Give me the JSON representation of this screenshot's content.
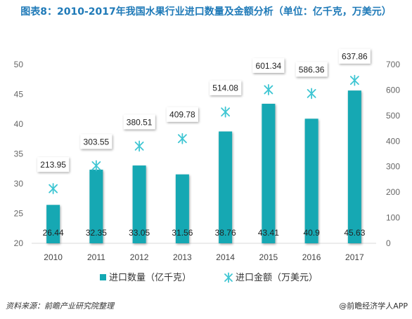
{
  "title": "图表8：2010-2017年我国水果行业进口数量及金额分析（单位：亿千克，万美元）",
  "source": "资料来源：前瞻产业研究院整理",
  "brand": "@前瞻经济学人APP",
  "colors": {
    "bar": "#13a8b3",
    "marker": "#3fc6d3",
    "axis_text": "#666666",
    "title": "#1f7ab8"
  },
  "chart_data": {
    "type": "bar",
    "categories": [
      "2010",
      "2011",
      "2012",
      "2013",
      "2014",
      "2015",
      "2016",
      "2017"
    ],
    "series": [
      {
        "name": "进口数量（亿千克）",
        "type": "bar",
        "axis": "left",
        "values": [
          26.44,
          32.35,
          33.05,
          31.56,
          38.76,
          43.41,
          40.9,
          45.63
        ],
        "labels": [
          "26.44",
          "32.35",
          "33.05",
          "31.56",
          "38.76",
          "43.41",
          "40.9",
          "45.63"
        ]
      },
      {
        "name": "进口金额（万美元）",
        "type": "scatter",
        "axis": "right",
        "values": [
          213.95,
          303.55,
          380.51,
          409.78,
          514.08,
          601.34,
          586.36,
          637.86
        ],
        "labels": [
          "213.95",
          "303.55",
          "380.51",
          "409.78",
          "514.08",
          "601.34",
          "586.36",
          "637.86"
        ]
      }
    ],
    "y_left": {
      "min": 20,
      "max": 50,
      "ticks": [
        "20",
        "25",
        "30",
        "35",
        "40",
        "45",
        "50"
      ]
    },
    "y_right": {
      "min": 0,
      "max": 700,
      "ticks": [
        "0",
        "100",
        "200",
        "300",
        "400",
        "500",
        "600",
        "700"
      ]
    },
    "legend_position": "bottom",
    "grid": false
  }
}
